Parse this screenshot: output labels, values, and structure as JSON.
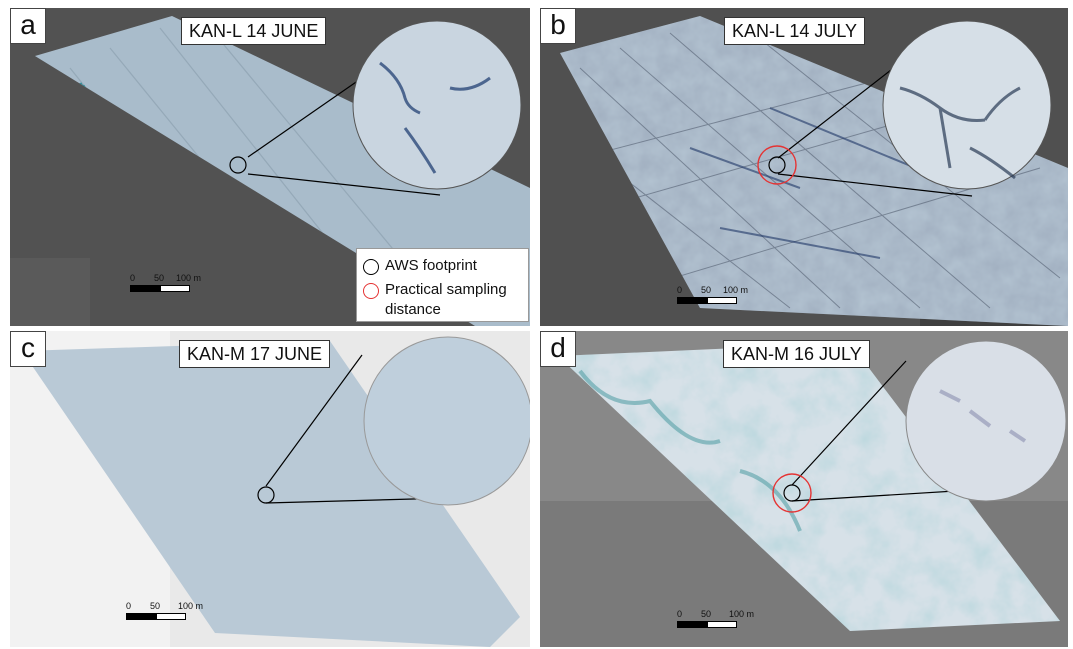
{
  "panels": {
    "a": {
      "letter": "a",
      "title": "KAN-L 14 JUNE"
    },
    "b": {
      "letter": "b",
      "title": "KAN-L 14 JULY"
    },
    "c": {
      "letter": "c",
      "title": "KAN-M 17 JUNE"
    },
    "d": {
      "letter": "d",
      "title": "KAN-M 16 JULY"
    }
  },
  "scalebar": {
    "zero": "0",
    "mid": "50",
    "end": "100 m"
  },
  "legend": {
    "aws_footprint": "AWS footprint",
    "practical_sampling_line1": "Practical sampling",
    "practical_sampling_line2": "distance",
    "aws_color": "#000000",
    "sampling_color": "#e53333"
  },
  "colors": {
    "dark_background": "#4a4a4a",
    "light_background": "#dcdcdc",
    "ice_rough": "#a9bccb",
    "ice_smooth": "#b9c9d6",
    "meltwater": "#62a9b0"
  }
}
